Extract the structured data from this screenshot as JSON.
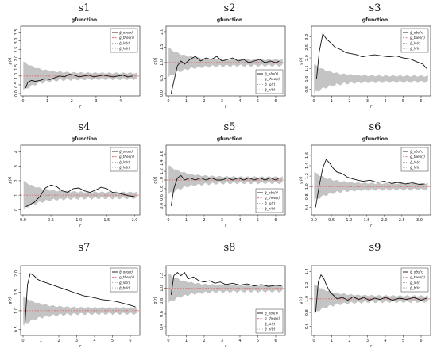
{
  "chart_data": [
    {
      "type": "line",
      "label": "s1",
      "title": "gfunction",
      "xlabel": "r",
      "ylabel": "g(r)",
      "xlim": [
        0,
        4.7
      ],
      "ylim": [
        0,
        3.7
      ],
      "xticks": [
        "0",
        "1",
        "2",
        "3",
        "4"
      ],
      "yticks": [
        "0.0",
        "0.5",
        "1.0",
        "1.5",
        "2.0",
        "2.5",
        "3.0",
        "3.5"
      ],
      "legend": "top-right",
      "series": [
        {
          "name": "ĝ_obs(r)",
          "x": [
            0.1,
            0.2,
            0.35,
            0.5,
            0.7,
            0.9,
            1.1,
            1.3,
            1.5,
            1.7,
            1.9,
            2.1,
            2.3,
            2.5,
            2.7,
            2.9,
            3.1,
            3.3,
            3.5,
            3.7,
            3.9,
            4.1,
            4.3,
            4.5
          ],
          "y": [
            0.3,
            0.65,
            0.75,
            0.7,
            0.75,
            0.85,
            0.8,
            0.9,
            1.0,
            0.95,
            1.1,
            1.05,
            0.95,
            1.0,
            1.05,
            0.95,
            1.0,
            1.05,
            1.0,
            0.95,
            1.0,
            1.05,
            0.95,
            1.0
          ]
        }
      ]
    },
    {
      "type": "line",
      "label": "s2",
      "title": "gfunction",
      "xlabel": "r",
      "ylabel": "g(r)",
      "xlim": [
        0,
        6.4
      ],
      "ylim": [
        0,
        2.1
      ],
      "xticks": [
        "0",
        "1",
        "2",
        "3",
        "4",
        "5",
        "6"
      ],
      "yticks": [
        "0.0",
        "0.5",
        "1.0",
        "1.5",
        "2.0"
      ],
      "legend": "bottom-right",
      "series": [
        {
          "name": "ĝ_obs(r)",
          "x": [
            0.15,
            0.3,
            0.5,
            0.7,
            0.9,
            1.2,
            1.5,
            1.8,
            2.1,
            2.4,
            2.7,
            3.0,
            3.3,
            3.6,
            3.9,
            4.2,
            4.5,
            4.8,
            5.1,
            5.4,
            5.7,
            6.0,
            6.2
          ],
          "y": [
            0.0,
            0.4,
            0.9,
            1.05,
            0.95,
            1.1,
            1.2,
            1.05,
            1.15,
            1.1,
            1.2,
            1.05,
            1.1,
            1.15,
            1.05,
            1.1,
            1.0,
            1.05,
            1.1,
            1.0,
            1.05,
            1.0,
            1.05
          ]
        }
      ]
    },
    {
      "type": "line",
      "label": "s3",
      "title": "gfunction",
      "xlabel": "r",
      "ylabel": "g(r)",
      "xlim": [
        0,
        6.4
      ],
      "ylim": [
        0.3,
        3.4
      ],
      "xticks": [
        "0",
        "1",
        "2",
        "3",
        "4",
        "5",
        "6"
      ],
      "yticks": [
        "0.5",
        "1.0",
        "1.5",
        "2.0",
        "2.5",
        "3.0"
      ],
      "legend": "top-right",
      "series": [
        {
          "name": "ĝ_obs(r)",
          "x": [
            0.15,
            0.3,
            0.5,
            0.7,
            0.9,
            1.2,
            1.5,
            1.8,
            2.1,
            2.4,
            2.7,
            3.0,
            3.4,
            3.8,
            4.2,
            4.6,
            5.0,
            5.4,
            5.8,
            6.1,
            6.3
          ],
          "y": [
            1.0,
            2.3,
            3.15,
            2.9,
            2.75,
            2.5,
            2.4,
            2.25,
            2.2,
            2.15,
            2.05,
            2.1,
            2.15,
            2.1,
            2.05,
            2.1,
            2.0,
            1.95,
            1.8,
            1.7,
            1.5
          ]
        }
      ]
    },
    {
      "type": "line",
      "label": "s4",
      "title": "gfunction",
      "xlabel": "r",
      "ylabel": "g(r)",
      "xlim": [
        0,
        2.05
      ],
      "ylim": [
        -0.2,
        4.3
      ],
      "xticks": [
        "0.0",
        "0.5",
        "1.0",
        "1.5",
        "2.0"
      ],
      "yticks": [
        "0",
        "1",
        "2",
        "3",
        "4"
      ],
      "legend": "top-right",
      "series": [
        {
          "name": "ĝ_obs(r)",
          "x": [
            0.05,
            0.1,
            0.2,
            0.3,
            0.4,
            0.5,
            0.6,
            0.7,
            0.8,
            0.9,
            1.0,
            1.1,
            1.2,
            1.3,
            1.4,
            1.5,
            1.6,
            1.7,
            1.8,
            1.9,
            2.0
          ],
          "y": [
            0.2,
            0.3,
            0.5,
            0.9,
            1.5,
            1.7,
            1.6,
            1.3,
            1.2,
            1.45,
            1.5,
            1.3,
            1.2,
            1.35,
            1.55,
            1.45,
            1.2,
            1.15,
            1.05,
            0.95,
            0.9
          ]
        }
      ]
    },
    {
      "type": "line",
      "label": "s5",
      "title": "gfunction",
      "xlabel": "r",
      "ylabel": "g(r)",
      "xlim": [
        0,
        6.4
      ],
      "ylim": [
        0.25,
        1.75
      ],
      "xticks": [
        "0",
        "1",
        "2",
        "3",
        "4",
        "5",
        "6"
      ],
      "yticks": [
        "0.4",
        "0.6",
        "0.8",
        "1.0",
        "1.2",
        "1.4",
        "1.6"
      ],
      "legend": "bottom-right",
      "series": [
        {
          "name": "ĝ_obs(r)",
          "x": [
            0.15,
            0.3,
            0.5,
            0.7,
            0.9,
            1.2,
            1.5,
            1.8,
            2.1,
            2.4,
            2.7,
            3.0,
            3.3,
            3.6,
            3.9,
            4.2,
            4.5,
            4.8,
            5.1,
            5.4,
            5.7,
            6.0,
            6.2
          ],
          "y": [
            0.4,
            0.8,
            1.05,
            1.1,
            1.0,
            1.05,
            1.0,
            1.05,
            1.0,
            1.05,
            1.0,
            1.0,
            1.05,
            1.0,
            1.05,
            1.0,
            1.05,
            1.0,
            1.05,
            1.0,
            1.05,
            1.0,
            1.05
          ]
        }
      ]
    },
    {
      "type": "line",
      "label": "s6",
      "title": "gfunction",
      "xlabel": "r",
      "ylabel": "g(r)",
      "xlim": [
        0,
        3.25
      ],
      "ylim": [
        0.5,
        1.75
      ],
      "xticks": [
        "0.0",
        "0.5",
        "1.0",
        "1.5",
        "2.0",
        "2.5",
        "3.0"
      ],
      "yticks": [
        "0.6",
        "0.8",
        "1.0",
        "1.2",
        "1.4",
        "1.6"
      ],
      "legend": "top-right",
      "series": [
        {
          "name": "ĝ_obs(r)",
          "x": [
            0.05,
            0.15,
            0.25,
            0.35,
            0.45,
            0.55,
            0.65,
            0.8,
            0.95,
            1.1,
            1.25,
            1.4,
            1.6,
            1.8,
            2.0,
            2.2,
            2.4,
            2.6,
            2.8,
            3.0,
            3.15
          ],
          "y": [
            0.6,
            1.0,
            1.35,
            1.52,
            1.45,
            1.35,
            1.28,
            1.25,
            1.18,
            1.15,
            1.12,
            1.1,
            1.12,
            1.08,
            1.1,
            1.06,
            1.08,
            1.05,
            1.07,
            1.04,
            1.05
          ]
        }
      ]
    },
    {
      "type": "line",
      "label": "s7",
      "title": "",
      "xlabel": "r",
      "ylabel": "g(r)",
      "xlim": [
        0,
        6.4
      ],
      "ylim": [
        0.4,
        2.15
      ],
      "xticks": [
        "0",
        "1",
        "2",
        "3",
        "4",
        "5",
        "6"
      ],
      "yticks": [
        "0.5",
        "1.0",
        "1.5",
        "2.0"
      ],
      "legend": "top-right",
      "series": [
        {
          "name": "ĝ_obs(r)",
          "x": [
            0.1,
            0.25,
            0.4,
            0.6,
            0.8,
            1.0,
            1.3,
            1.6,
            1.9,
            2.2,
            2.5,
            2.8,
            3.1,
            3.4,
            3.7,
            4.0,
            4.4,
            4.8,
            5.2,
            5.6,
            6.0,
            6.3
          ],
          "y": [
            0.6,
            1.7,
            2.0,
            1.95,
            1.85,
            1.8,
            1.75,
            1.7,
            1.65,
            1.6,
            1.55,
            1.5,
            1.45,
            1.4,
            1.38,
            1.35,
            1.3,
            1.28,
            1.25,
            1.2,
            1.15,
            1.1
          ]
        }
      ]
    },
    {
      "type": "line",
      "label": "s8",
      "title": "",
      "xlabel": "r",
      "ylabel": "g(r)",
      "xlim": [
        0,
        6.4
      ],
      "ylim": [
        0.3,
        1.32
      ],
      "xticks": [
        "0",
        "1",
        "2",
        "3",
        "4",
        "5",
        "6"
      ],
      "yticks": [
        "0.4",
        "0.6",
        "0.8",
        "1.0",
        "1.2"
      ],
      "legend": "bottom-right",
      "series": [
        {
          "name": "ĝ_obs(r)",
          "x": [
            0.15,
            0.3,
            0.5,
            0.7,
            0.9,
            1.1,
            1.4,
            1.7,
            2.0,
            2.3,
            2.6,
            2.9,
            3.2,
            3.6,
            4.0,
            4.4,
            4.8,
            5.2,
            5.6,
            6.0,
            6.3
          ],
          "y": [
            0.9,
            1.2,
            1.25,
            1.2,
            1.25,
            1.15,
            1.18,
            1.12,
            1.1,
            1.12,
            1.08,
            1.1,
            1.06,
            1.08,
            1.05,
            1.07,
            1.04,
            1.06,
            1.03,
            1.05,
            1.04
          ]
        }
      ]
    },
    {
      "type": "line",
      "label": "s9",
      "title": "",
      "xlabel": "r",
      "ylabel": "g(r)",
      "xlim": [
        0,
        6.4
      ],
      "ylim": [
        0.5,
        1.45
      ],
      "xticks": [
        "0",
        "1",
        "2",
        "3",
        "4",
        "5",
        "6"
      ],
      "yticks": [
        "0.6",
        "0.8",
        "1.0",
        "1.2",
        "1.4"
      ],
      "legend": "top-right",
      "series": [
        {
          "name": "ĝ_obs(r)",
          "x": [
            0.1,
            0.25,
            0.4,
            0.55,
            0.7,
            0.9,
            1.1,
            1.3,
            1.6,
            1.9,
            2.2,
            2.5,
            2.8,
            3.1,
            3.4,
            3.7,
            4.0,
            4.4,
            4.8,
            5.2,
            5.6,
            6.0,
            6.3
          ],
          "y": [
            0.8,
            1.25,
            1.35,
            1.3,
            1.2,
            1.1,
            1.05,
            1.0,
            1.02,
            0.98,
            1.03,
            0.99,
            1.02,
            0.98,
            1.01,
            0.99,
            1.02,
            0.98,
            1.01,
            0.99,
            1.02,
            0.98,
            1.01
          ]
        }
      ]
    }
  ],
  "legend_labels": [
    "ĝ_obs(r)",
    "g_theo(r)",
    "ĝ_lo(r)",
    "ĝ_hi(r)"
  ],
  "colors": {
    "observed": "#111111",
    "theoretical": "#e06060",
    "envelope": "#c4c4c4",
    "frame": "#333333"
  }
}
